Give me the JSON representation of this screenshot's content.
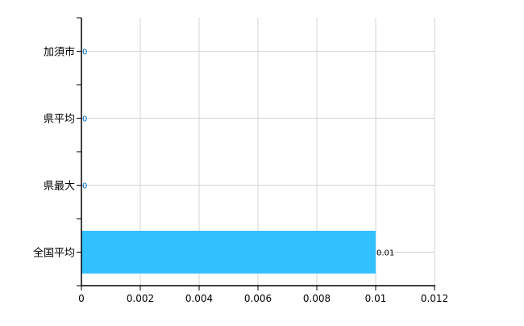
{
  "chart_data": {
    "type": "bar",
    "orientation": "horizontal",
    "categories": [
      "加須市",
      "県平均",
      "県最大",
      "全国平均"
    ],
    "values": [
      0,
      0,
      0,
      0.01
    ],
    "data_labels": [
      "0",
      "0",
      "0",
      "0.01"
    ],
    "title": "",
    "xlabel": "",
    "ylabel": "",
    "xlim": [
      0,
      0.012
    ],
    "xticks": [
      0,
      0.002,
      0.004,
      0.006,
      0.008,
      0.01,
      0.012
    ],
    "xtick_labels": [
      "0",
      "0.002",
      "0.004",
      "0.006",
      "0.008",
      "0.01",
      "0.012"
    ],
    "grid": true,
    "legend": "none",
    "colors": {
      "bar": "#33c0ff",
      "zero_label": "#0070c0",
      "grid": "#d3d3d3"
    }
  }
}
